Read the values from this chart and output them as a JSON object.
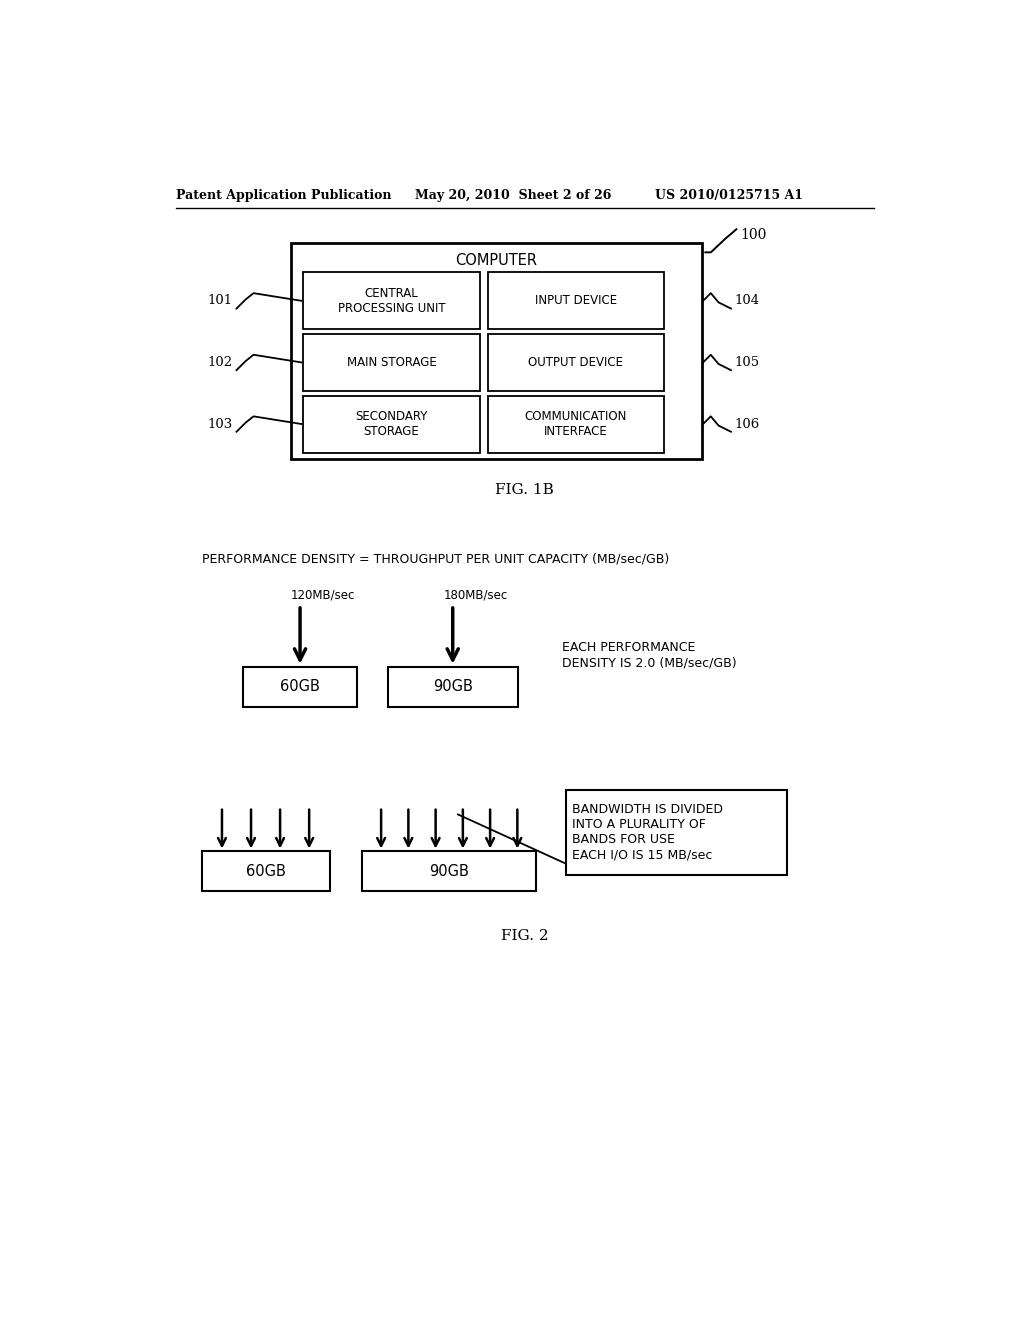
{
  "bg_color": "#ffffff",
  "text_color": "#000000",
  "header_left": "Patent Application Publication",
  "header_mid": "May 20, 2010  Sheet 2 of 26",
  "header_right": "US 2010/0125715 A1",
  "fig1b_label": "FIG. 1B",
  "fig2_label": "FIG. 2",
  "computer_label": "COMPUTER",
  "ref_100": "100",
  "ref_101": "101",
  "ref_102": "102",
  "ref_103": "103",
  "ref_104": "104",
  "ref_105": "105",
  "ref_106": "106",
  "box_labels": [
    [
      "CENTRAL\nPROCESSING UNIT",
      "INPUT DEVICE"
    ],
    [
      "MAIN STORAGE",
      "OUTPUT DEVICE"
    ],
    [
      "SECONDARY\nSTORAGE",
      "COMMUNICATION\nINTERFACE"
    ]
  ],
  "perf_density_text": "PERFORMANCE DENSITY = THROUGHPUT PER UNIT CAPACITY (MB/sec/GB)",
  "arrow1_label": "120MB/sec",
  "arrow2_label": "180MB/sec",
  "box1_label": "60GB",
  "box2_label": "90GB",
  "box3_label": "60GB",
  "box4_label": "90GB",
  "perf_note": "EACH PERFORMANCE\nDENSITY IS 2.0 (MB/sec/GB)",
  "bandwidth_note": "BANDWIDTH IS DIVIDED\nINTO A PLURALITY OF\nBANDS FOR USE\nEACH I/O IS 15 MB/sec"
}
